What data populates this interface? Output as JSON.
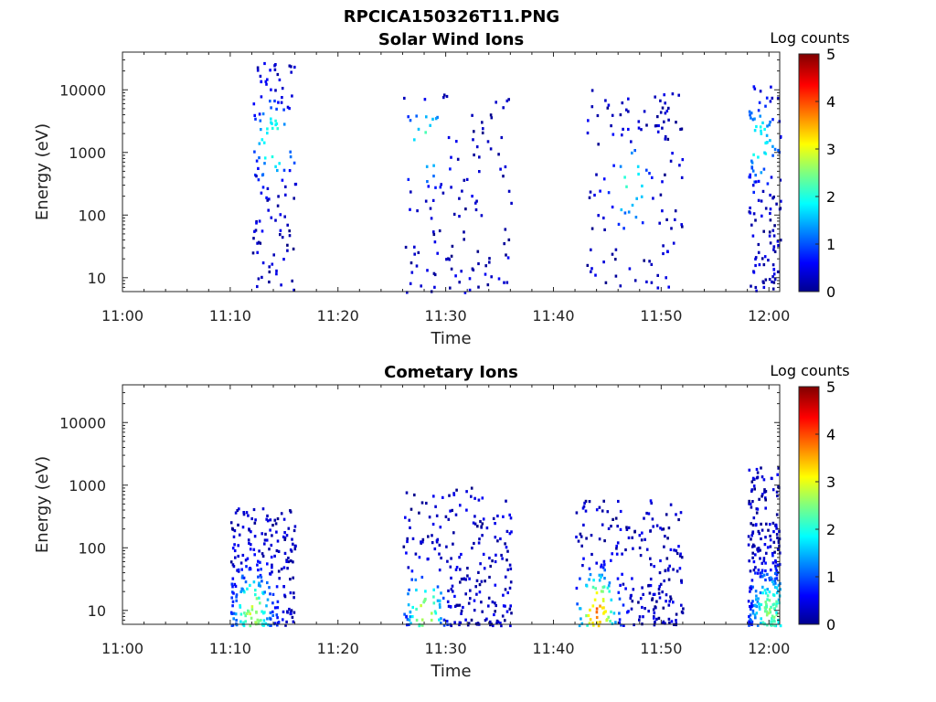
{
  "figure_title": "RPCICA150326T11.PNG",
  "chart_data": [
    {
      "type": "heatmap",
      "title": "Solar Wind Ions",
      "xlabel": "Time",
      "ylabel": "Energy (eV)",
      "x_ticks": [
        "11:00",
        "11:10",
        "11:20",
        "11:30",
        "11:40",
        "11:50",
        "12:00"
      ],
      "y_ticks": [
        "10",
        "100",
        "1000",
        "10000"
      ],
      "y_scale": "log",
      "ylim": [
        6,
        40000
      ],
      "xlim": [
        "11:00",
        "12:01"
      ],
      "colorbar": {
        "label": "Log counts",
        "ticks": [
          "0",
          "1",
          "2",
          "3",
          "4",
          "5"
        ],
        "range": [
          0,
          5
        ],
        "colormap": "jet"
      },
      "bursts": [
        {
          "t_start": "11:12",
          "t_end": "11:16",
          "e_min": 6,
          "e_max": 30000,
          "peak_time": "11:14",
          "peak_energy": 1500,
          "peak_log_counts": 2.3
        },
        {
          "t_start": "11:26",
          "t_end": "11:36",
          "e_min": 6,
          "e_max": 9000,
          "peak_time": "11:28",
          "peak_energy": 1500,
          "peak_log_counts": 2.0
        },
        {
          "t_start": "11:43",
          "t_end": "11:52",
          "e_min": 6,
          "e_max": 12000,
          "peak_time": "11:47",
          "peak_energy": 300,
          "peak_log_counts": 2.0
        },
        {
          "t_start": "11:58",
          "t_end": "12:01",
          "e_min": 6,
          "e_max": 12000,
          "peak_time": "11:59",
          "peak_energy": 1500,
          "peak_log_counts": 1.8
        }
      ]
    },
    {
      "type": "heatmap",
      "title": "Cometary Ions",
      "xlabel": "Time",
      "ylabel": "Energy (eV)",
      "x_ticks": [
        "11:00",
        "11:10",
        "11:20",
        "11:30",
        "11:40",
        "11:50",
        "12:00"
      ],
      "y_ticks": [
        "10",
        "100",
        "1000",
        "10000"
      ],
      "y_scale": "log",
      "ylim": [
        6,
        40000
      ],
      "xlim": [
        "11:00",
        "12:01"
      ],
      "colorbar": {
        "label": "Log counts",
        "ticks": [
          "0",
          "1",
          "2",
          "3",
          "4",
          "5"
        ],
        "range": [
          0,
          5
        ],
        "colormap": "jet"
      },
      "bursts": [
        {
          "t_start": "11:10",
          "t_end": "11:16",
          "e_min": 6,
          "e_max": 450,
          "peak_time": "11:12",
          "peak_energy": 10,
          "peak_log_counts": 2.5
        },
        {
          "t_start": "11:26",
          "t_end": "11:36",
          "e_min": 6,
          "e_max": 1000,
          "peak_time": "11:28",
          "peak_energy": 10,
          "peak_log_counts": 2.5
        },
        {
          "t_start": "11:42",
          "t_end": "11:52",
          "e_min": 6,
          "e_max": 600,
          "peak_time": "11:44",
          "peak_energy": 10,
          "peak_log_counts": 3.4
        },
        {
          "t_start": "11:58",
          "t_end": "12:01",
          "e_min": 6,
          "e_max": 2000,
          "peak_time": "12:00",
          "peak_energy": 10,
          "peak_log_counts": 2.2
        }
      ]
    }
  ]
}
